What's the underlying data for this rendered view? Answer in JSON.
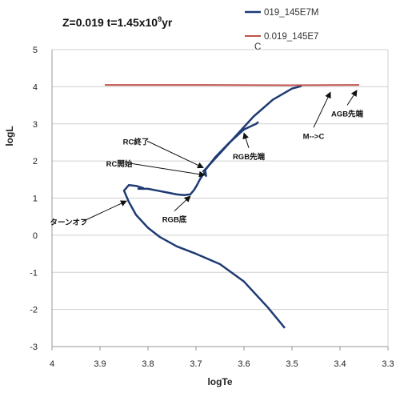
{
  "chart_data": {
    "type": "line",
    "title": {
      "main": "Z=0.019  t=1.45x10",
      "exp": "9",
      "tail": "yr"
    },
    "xlabel": "logTe",
    "ylabel": "logL",
    "xlim": [
      4.0,
      3.3
    ],
    "ylim": [
      -3,
      5
    ],
    "x_reversed": true,
    "xticks": [
      "4",
      "3.9",
      "3.8",
      "3.7",
      "3.6",
      "3.5",
      "3.4",
      "3.3"
    ],
    "yticks": [
      "5",
      "4",
      "3",
      "2",
      "1",
      "0",
      "-1",
      "-2",
      "-3"
    ],
    "grid": "horizontal",
    "legend_position": "top-right",
    "series": [
      {
        "name": "019_145E7M",
        "color": "#1f3b73",
        "x": [
          3.515,
          3.55,
          3.6,
          3.65,
          3.7,
          3.74,
          3.775,
          3.8,
          3.825,
          3.84,
          3.85,
          3.84,
          3.825,
          3.81,
          3.82,
          3.8,
          3.78,
          3.76,
          3.74,
          3.725,
          3.712,
          3.704,
          3.698,
          3.692,
          3.686,
          3.682,
          3.679,
          3.681,
          3.66,
          3.63,
          3.6,
          3.575,
          3.57
        ],
        "y": [
          -2.5,
          -1.95,
          -1.25,
          -0.78,
          -0.5,
          -0.3,
          -0.05,
          0.2,
          0.55,
          0.9,
          1.2,
          1.35,
          1.33,
          1.27,
          1.25,
          1.25,
          1.2,
          1.15,
          1.1,
          1.08,
          1.1,
          1.22,
          1.35,
          1.5,
          1.62,
          1.68,
          1.6,
          1.75,
          2.1,
          2.5,
          2.85,
          3.0,
          3.05
        ],
        "x2": [
          3.686,
          3.64,
          3.58,
          3.54,
          3.5,
          3.48
        ],
        "y2": [
          1.7,
          2.35,
          3.2,
          3.65,
          3.95,
          4.02
        ]
      },
      {
        "name": "0.019_145E7C",
        "legend_line1": "0.019_145E7",
        "legend_line2": "C",
        "color": "#c0504d",
        "x": [
          3.89,
          3.7,
          3.5,
          3.36
        ],
        "y": [
          4.05,
          4.05,
          4.04,
          4.05
        ]
      }
    ],
    "annotations": [
      {
        "text": "ターンオフ",
        "label_x": 3.965,
        "label_y": 0.28,
        "arrow_x": 3.845,
        "arrow_y": 0.92
      },
      {
        "text": "RGB底",
        "label_x": 3.745,
        "label_y": 0.35,
        "arrow_x": 3.712,
        "arrow_y": 1.05
      },
      {
        "text": "RC開始",
        "label_x": 3.86,
        "label_y": 1.85,
        "arrow_x": 3.682,
        "arrow_y": 1.62
      },
      {
        "text": "RC終了",
        "label_x": 3.825,
        "label_y": 2.45,
        "arrow_x": 3.685,
        "arrow_y": 1.82
      },
      {
        "text": "RGB先端",
        "label_x": 3.59,
        "label_y": 2.05,
        "arrow_x": 3.6,
        "arrow_y": 2.75
      },
      {
        "text": "M-->C",
        "label_x": 3.455,
        "label_y": 2.6,
        "arrow_x": 3.42,
        "arrow_y": 3.85
      },
      {
        "text": "AGB先端",
        "label_x": 3.385,
        "label_y": 3.2,
        "arrow_x": 3.365,
        "arrow_y": 3.9
      }
    ]
  }
}
